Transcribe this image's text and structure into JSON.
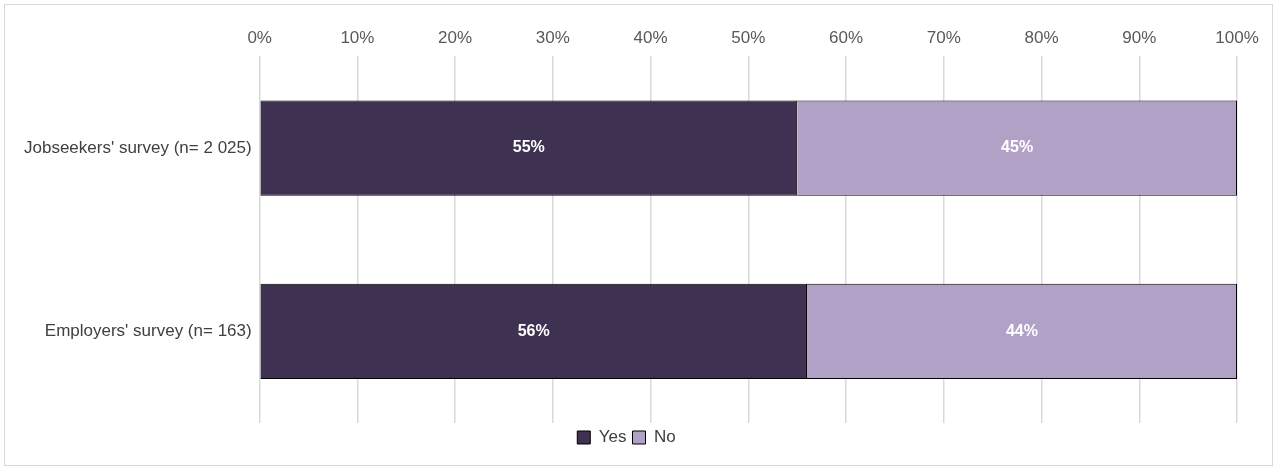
{
  "chart_data": {
    "type": "bar",
    "orientation": "horizontal",
    "stacked": true,
    "categories": [
      "Jobseekers' survey (n= 2 025)",
      "Employers' survey (n= 163)"
    ],
    "series": [
      {
        "name": "Yes",
        "color": "#3f3151",
        "values": [
          55,
          56
        ]
      },
      {
        "name": "No",
        "color": "#b2a1c7",
        "values": [
          45,
          44
        ]
      }
    ],
    "xlim": [
      0,
      100
    ],
    "xticks": [
      {
        "value": 0,
        "label": "0%"
      },
      {
        "value": 10,
        "label": "10%"
      },
      {
        "value": 20,
        "label": "20%"
      },
      {
        "value": 30,
        "label": "30%"
      },
      {
        "value": 40,
        "label": "40%"
      },
      {
        "value": 50,
        "label": "50%"
      },
      {
        "value": 60,
        "label": "60%"
      },
      {
        "value": 70,
        "label": "70%"
      },
      {
        "value": 80,
        "label": "80%"
      },
      {
        "value": 90,
        "label": "90%"
      },
      {
        "value": 100,
        "label": "100%"
      }
    ],
    "value_labels": [
      [
        "55%",
        "56%"
      ],
      [
        "45%",
        "44%"
      ]
    ],
    "grid": "x",
    "legend": "bottom"
  }
}
